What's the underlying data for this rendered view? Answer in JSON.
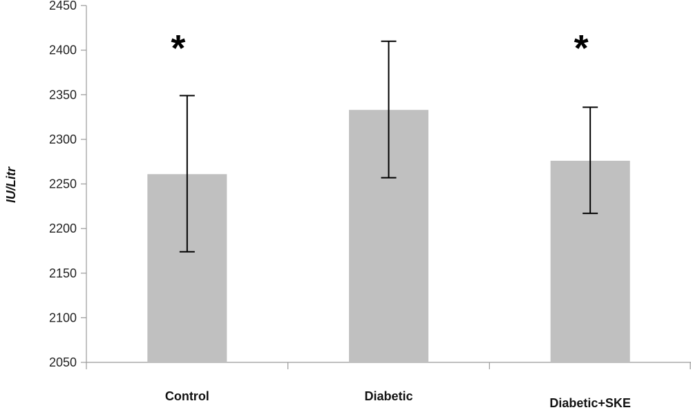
{
  "chart_data": {
    "type": "bar",
    "categories": [
      "Control",
      "Diabetic",
      "Diabetic+SKE"
    ],
    "values": [
      2261,
      2333,
      2276
    ],
    "error_high": [
      2349,
      2410,
      2336
    ],
    "error_low": [
      2174,
      2257,
      2217
    ],
    "significance": [
      "*",
      "",
      "*"
    ],
    "ylabel": "IU/Litr",
    "xlabel": "",
    "ylim": [
      2050,
      2450
    ],
    "yticks": [
      2050,
      2100,
      2150,
      2200,
      2250,
      2300,
      2350,
      2400,
      2450
    ],
    "grid": false,
    "legend": "none",
    "bar_color": "#c0c0c0",
    "axis_color": "#999999",
    "error_color": "#000000"
  }
}
